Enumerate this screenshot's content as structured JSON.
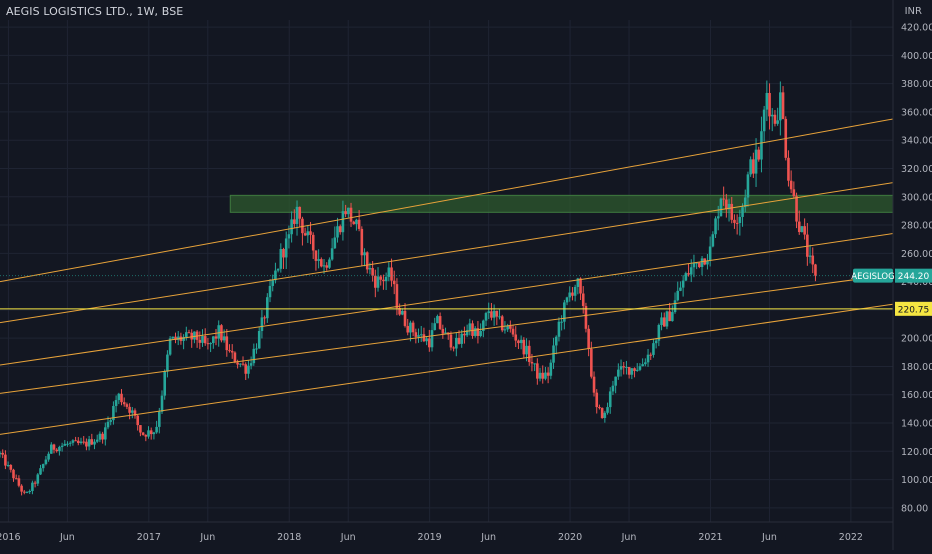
{
  "header": {
    "title": "AEGIS LOGISTICS LTD., 1W, BSE",
    "currency": "INR"
  },
  "colors": {
    "background": "#131722",
    "grid": "#1f2433",
    "axis_text": "#b2b5be",
    "bull": "#26a69a",
    "bear": "#ef5350",
    "trendline": "#e8a33a",
    "hline": "#f5e642",
    "zone_fill": "#2e5a2e",
    "zone_border": "#3f7a3f",
    "symbol_tag": "#26a69a",
    "level_tag": "#f5e642"
  },
  "chart_data": {
    "type": "candlestick",
    "title": "AEGIS LOGISTICS LTD., 1W, BSE",
    "ylabel": "INR",
    "ylim": [
      70,
      425
    ],
    "y_ticks": [
      "80.00",
      "100.00",
      "120.00",
      "140.00",
      "160.00",
      "180.00",
      "200.00",
      "220.00",
      "240.00",
      "260.00",
      "280.00",
      "300.00",
      "320.00",
      "340.00",
      "360.00",
      "380.00",
      "400.00",
      "420.00"
    ],
    "y_tick_values": [
      80,
      100,
      120,
      140,
      160,
      180,
      200,
      220,
      240,
      260,
      280,
      300,
      320,
      340,
      360,
      380,
      400,
      420
    ],
    "x_range": [
      2015.94,
      2022.3
    ],
    "x_ticks": [
      {
        "label": "2016",
        "x": 2016.0
      },
      {
        "label": "Jun",
        "x": 2016.42
      },
      {
        "label": "2017",
        "x": 2017.0
      },
      {
        "label": "Jun",
        "x": 2017.42
      },
      {
        "label": "2018",
        "x": 2018.0
      },
      {
        "label": "Jun",
        "x": 2018.42
      },
      {
        "label": "2019",
        "x": 2019.0
      },
      {
        "label": "Jun",
        "x": 2019.42
      },
      {
        "label": "2020",
        "x": 2020.0
      },
      {
        "label": "Jun",
        "x": 2020.42
      },
      {
        "label": "2021",
        "x": 2021.0
      },
      {
        "label": "Jun",
        "x": 2021.42
      },
      {
        "label": "2022",
        "x": 2022.0
      }
    ],
    "grid": true,
    "price_keypoints": [
      [
        2015.94,
        118
      ],
      [
        2016.05,
        100
      ],
      [
        2016.12,
        88
      ],
      [
        2016.2,
        100
      ],
      [
        2016.3,
        122
      ],
      [
        2016.42,
        125
      ],
      [
        2016.55,
        125
      ],
      [
        2016.68,
        132
      ],
      [
        2016.78,
        160
      ],
      [
        2016.88,
        148
      ],
      [
        2016.95,
        132
      ],
      [
        2017.05,
        135
      ],
      [
        2017.1,
        165
      ],
      [
        2017.15,
        198
      ],
      [
        2017.25,
        200
      ],
      [
        2017.35,
        200
      ],
      [
        2017.42,
        193
      ],
      [
        2017.5,
        205
      ],
      [
        2017.58,
        188
      ],
      [
        2017.7,
        178
      ],
      [
        2017.78,
        200
      ],
      [
        2017.88,
        238
      ],
      [
        2017.95,
        262
      ],
      [
        2018.0,
        270
      ],
      [
        2018.05,
        292
      ],
      [
        2018.12,
        272
      ],
      [
        2018.18,
        262
      ],
      [
        2018.25,
        250
      ],
      [
        2018.3,
        265
      ],
      [
        2018.35,
        278
      ],
      [
        2018.4,
        292
      ],
      [
        2018.48,
        278
      ],
      [
        2018.55,
        252
      ],
      [
        2018.62,
        240
      ],
      [
        2018.72,
        245
      ],
      [
        2018.78,
        220
      ],
      [
        2018.85,
        208
      ],
      [
        2018.95,
        200
      ],
      [
        2019.0,
        198
      ],
      [
        2019.05,
        212
      ],
      [
        2019.12,
        200
      ],
      [
        2019.2,
        195
      ],
      [
        2019.28,
        210
      ],
      [
        2019.35,
        200
      ],
      [
        2019.42,
        220
      ],
      [
        2019.5,
        210
      ],
      [
        2019.58,
        205
      ],
      [
        2019.68,
        192
      ],
      [
        2019.78,
        172
      ],
      [
        2019.85,
        175
      ],
      [
        2019.92,
        210
      ],
      [
        2020.0,
        232
      ],
      [
        2020.05,
        240
      ],
      [
        2020.12,
        205
      ],
      [
        2020.18,
        150
      ],
      [
        2020.25,
        145
      ],
      [
        2020.32,
        175
      ],
      [
        2020.4,
        178
      ],
      [
        2020.5,
        180
      ],
      [
        2020.58,
        192
      ],
      [
        2020.65,
        210
      ],
      [
        2020.72,
        218
      ],
      [
        2020.78,
        235
      ],
      [
        2020.85,
        248
      ],
      [
        2020.92,
        255
      ],
      [
        2021.0,
        262
      ],
      [
        2021.08,
        305
      ],
      [
        2021.15,
        285
      ],
      [
        2021.22,
        290
      ],
      [
        2021.28,
        320
      ],
      [
        2021.35,
        330
      ],
      [
        2021.4,
        375
      ],
      [
        2021.45,
        352
      ],
      [
        2021.5,
        370
      ],
      [
        2021.55,
        320
      ],
      [
        2021.62,
        285
      ],
      [
        2021.68,
        265
      ],
      [
        2021.72,
        248
      ],
      [
        2021.76,
        244.2
      ]
    ],
    "trendlines": [
      {
        "x1": 2015.94,
        "y1": 240,
        "x2": 2022.3,
        "y2": 355
      },
      {
        "x1": 2015.94,
        "y1": 211,
        "x2": 2022.3,
        "y2": 310
      },
      {
        "x1": 2015.94,
        "y1": 181,
        "x2": 2022.3,
        "y2": 274
      },
      {
        "x1": 2015.94,
        "y1": 161,
        "x2": 2022.3,
        "y2": 245
      },
      {
        "x1": 2015.94,
        "y1": 132,
        "x2": 2022.3,
        "y2": 224
      }
    ],
    "horizontal_line": 220.75,
    "resistance_zone": {
      "x1": 2017.58,
      "x2": 2022.3,
      "y_low": 289,
      "y_high": 301
    },
    "last_price": {
      "symbol": "AEGISLOG",
      "value": "244.20",
      "y": 244.2
    },
    "level_label": {
      "value": "220.75",
      "y": 220.75
    }
  }
}
